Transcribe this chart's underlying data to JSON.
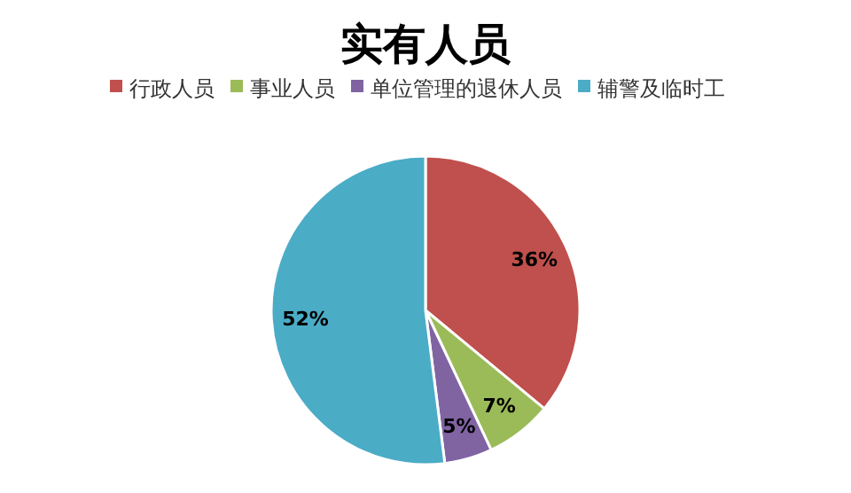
{
  "chart_data": {
    "type": "pie",
    "title": "实有人员",
    "categories": [
      "行政人员",
      "事业人员",
      "单位管理的退休人员",
      "辅警及临时工"
    ],
    "values": [
      36,
      7,
      5,
      52
    ],
    "colors": [
      "#c0504d",
      "#9bbb59",
      "#8064a2",
      "#4bacc6"
    ],
    "value_labels": [
      "36%",
      "7%",
      "5%",
      "52%"
    ],
    "legend": "top"
  }
}
